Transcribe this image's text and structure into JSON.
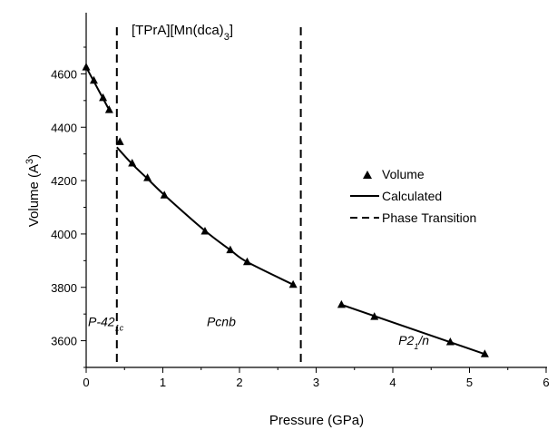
{
  "chart_data": {
    "type": "scatter",
    "title": "[TPrA][Mn(dca)3]",
    "xlabel": "Pressure (GPa)",
    "ylabel": "Volume (A3)",
    "xlim": [
      0,
      6
    ],
    "ylim": [
      3500,
      4700
    ],
    "xticks": [
      0,
      1,
      2,
      3,
      4,
      5,
      6
    ],
    "yticks": [
      3600,
      3800,
      4000,
      4200,
      4400,
      4600
    ],
    "grid": false,
    "legend_position": "right",
    "legend": [
      "Volume",
      "Calculated",
      "Phase Transition"
    ],
    "series": [
      {
        "name": "Volume",
        "marker": "triangle",
        "x": [
          0.0,
          0.1,
          0.22,
          0.3,
          0.44,
          0.6,
          0.8,
          1.02,
          1.55,
          1.88,
          2.1,
          2.7,
          3.33,
          3.76,
          4.75,
          5.2
        ],
        "y": [
          4625,
          4575,
          4510,
          4465,
          4345,
          4265,
          4210,
          4145,
          4010,
          3940,
          3895,
          3810,
          3735,
          3690,
          3595,
          3550
        ]
      },
      {
        "name": "Calculated",
        "segments": [
          {
            "x": [
              0.0,
              0.3
            ],
            "y": [
              4625,
              4465
            ]
          },
          {
            "x": [
              0.4,
              0.6,
              0.8,
              1.02,
              1.55,
              1.88,
              2.1,
              2.7
            ],
            "y": [
              4325,
              4262,
              4207,
              4146,
              4012,
              3940,
              3895,
              3810
            ]
          },
          {
            "x": [
              3.33,
              5.2
            ],
            "y": [
              3735,
              3550
            ]
          }
        ]
      }
    ],
    "phase_transitions": [
      0.4,
      2.8
    ],
    "phase_labels": [
      {
        "main": "P-42",
        "sub": "1c",
        "x": 0.0,
        "y": 3655
      },
      {
        "main": "Pcnb",
        "sub": "",
        "x": 1.55,
        "y": 3655
      },
      {
        "main": "P2",
        "sub": "1",
        "rest": "/n",
        "x": 4.05,
        "y": 3585
      }
    ]
  }
}
